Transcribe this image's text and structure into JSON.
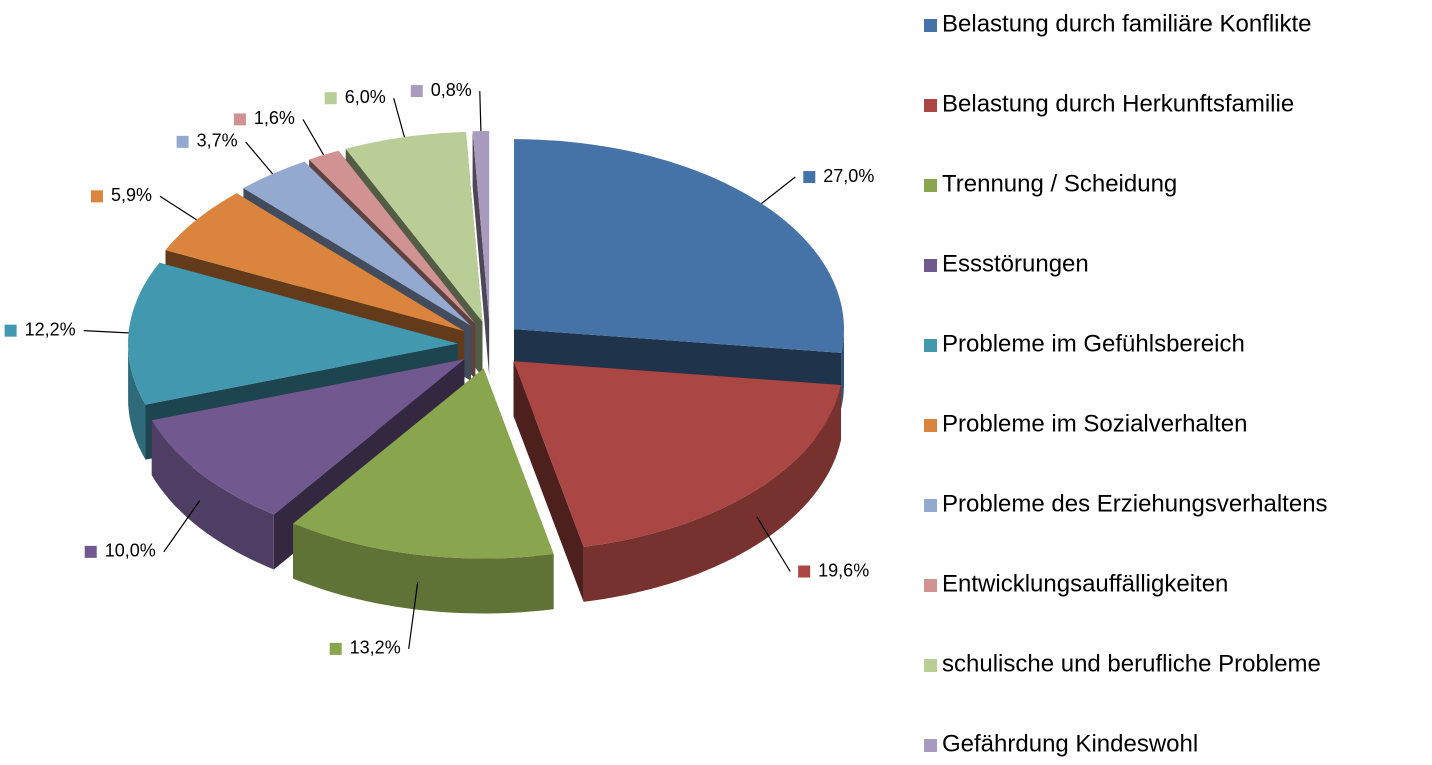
{
  "chart_data": {
    "type": "pie",
    "categories": [
      "Belastung durch familiäre Konflikte",
      "Belastung durch Herkunftsfamilie",
      "Trennung / Scheidung",
      "Essstörungen",
      "Probleme im Gefühlsbereich",
      "Probleme im Sozialverhalten",
      "Probleme des Erziehungsverhaltens",
      "Entwicklungsauffälligkeiten",
      "schulische und berufliche Probleme",
      "Gefährdung Kindeswohl"
    ],
    "values": [
      27.0,
      19.6,
      13.2,
      10.0,
      12.2,
      5.9,
      3.7,
      1.6,
      6.0,
      0.8
    ],
    "value_labels": [
      "27,0%",
      "19,6%",
      "13,2%",
      "10,0%",
      "12,2%",
      "5,9%",
      "3,7%",
      "1,6%",
      "6,0%",
      "0,8%"
    ],
    "colors": [
      "#4572a7",
      "#aa4643",
      "#89a54e",
      "#71588f",
      "#4198af",
      "#db843d",
      "#93a9cf",
      "#d19392",
      "#b9cd96",
      "#a99bbd"
    ],
    "legend": "right"
  }
}
